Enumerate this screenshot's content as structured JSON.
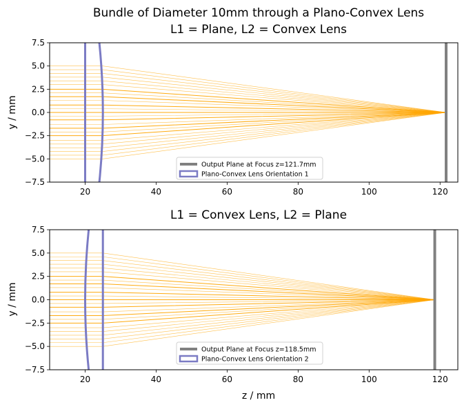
{
  "figure": {
    "title_line1": "Bundle of Diameter 10mm through a Plano-Convex Lens"
  },
  "chart_data": [
    {
      "type": "line",
      "title": "L1 = Plane, L2 = Convex Lens",
      "xlabel": "",
      "ylabel": "y / mm",
      "xlim": [
        10,
        125
      ],
      "ylim": [
        -7.5,
        7.5
      ],
      "xticks": [
        20,
        40,
        60,
        80,
        100,
        120
      ],
      "yticks": [
        -7.5,
        -5.0,
        -2.5,
        0.0,
        2.5,
        5.0,
        7.5
      ],
      "ytick_labels": [
        "−7.5",
        "−5.0",
        "−2.5",
        "0.0",
        "2.5",
        "5.0",
        "7.5"
      ],
      "grid": false,
      "legend_position": "lower center",
      "ray_color": "#ffa500",
      "lens_color": "#7b7bc4",
      "plane_color": "#808080",
      "ray_heights": [
        -5.0,
        -4.6,
        -4.2,
        -3.8,
        -3.4,
        -3.0,
        -2.5,
        -2.1,
        -1.7,
        -1.3,
        -0.8,
        -0.4,
        0.0,
        0.4,
        0.8,
        1.3,
        1.7,
        2.1,
        2.5,
        3.0,
        3.4,
        3.8,
        4.2,
        4.6,
        5.0
      ],
      "rays_start_z": 10,
      "lens": {
        "flat_side_z": 20,
        "vertex_z": 25,
        "curved_side": "right",
        "edge_z": 24.0,
        "aperture_half": 7.5
      },
      "focus_z": 121.7,
      "legend": [
        {
          "label": "Output Plane at Focus z=121.7mm",
          "kind": "line",
          "color": "#808080"
        },
        {
          "label": "Plano-Convex Lens Orientation 1",
          "kind": "patch",
          "color": "#7b7bc4"
        }
      ]
    },
    {
      "type": "line",
      "title": "L1 = Convex Lens, L2 = Plane",
      "xlabel": "z / mm",
      "ylabel": "y / mm",
      "xlim": [
        10,
        125
      ],
      "ylim": [
        -7.5,
        7.5
      ],
      "xticks": [
        20,
        40,
        60,
        80,
        100,
        120
      ],
      "yticks": [
        -7.5,
        -5.0,
        -2.5,
        0.0,
        2.5,
        5.0,
        7.5
      ],
      "ytick_labels": [
        "−7.5",
        "−5.0",
        "−2.5",
        "0.0",
        "2.5",
        "5.0",
        "7.5"
      ],
      "grid": false,
      "legend_position": "lower center",
      "ray_color": "#ffa500",
      "lens_color": "#7b7bc4",
      "plane_color": "#808080",
      "ray_heights": [
        -5.0,
        -4.6,
        -4.2,
        -3.8,
        -3.4,
        -3.0,
        -2.5,
        -2.1,
        -1.7,
        -1.3,
        -0.8,
        -0.4,
        0.0,
        0.4,
        0.8,
        1.3,
        1.7,
        2.1,
        2.5,
        3.0,
        3.4,
        3.8,
        4.2,
        4.6,
        5.0
      ],
      "rays_start_z": 10,
      "lens": {
        "flat_side_z": 25,
        "vertex_z": 20,
        "curved_side": "left",
        "edge_z": 21.0,
        "aperture_half": 7.5
      },
      "focus_z": 118.5,
      "legend": [
        {
          "label": "Output Plane at Focus z=118.5mm",
          "kind": "line",
          "color": "#808080"
        },
        {
          "label": "Plano-Convex Lens Orientation 2",
          "kind": "patch",
          "color": "#7b7bc4"
        }
      ]
    }
  ]
}
